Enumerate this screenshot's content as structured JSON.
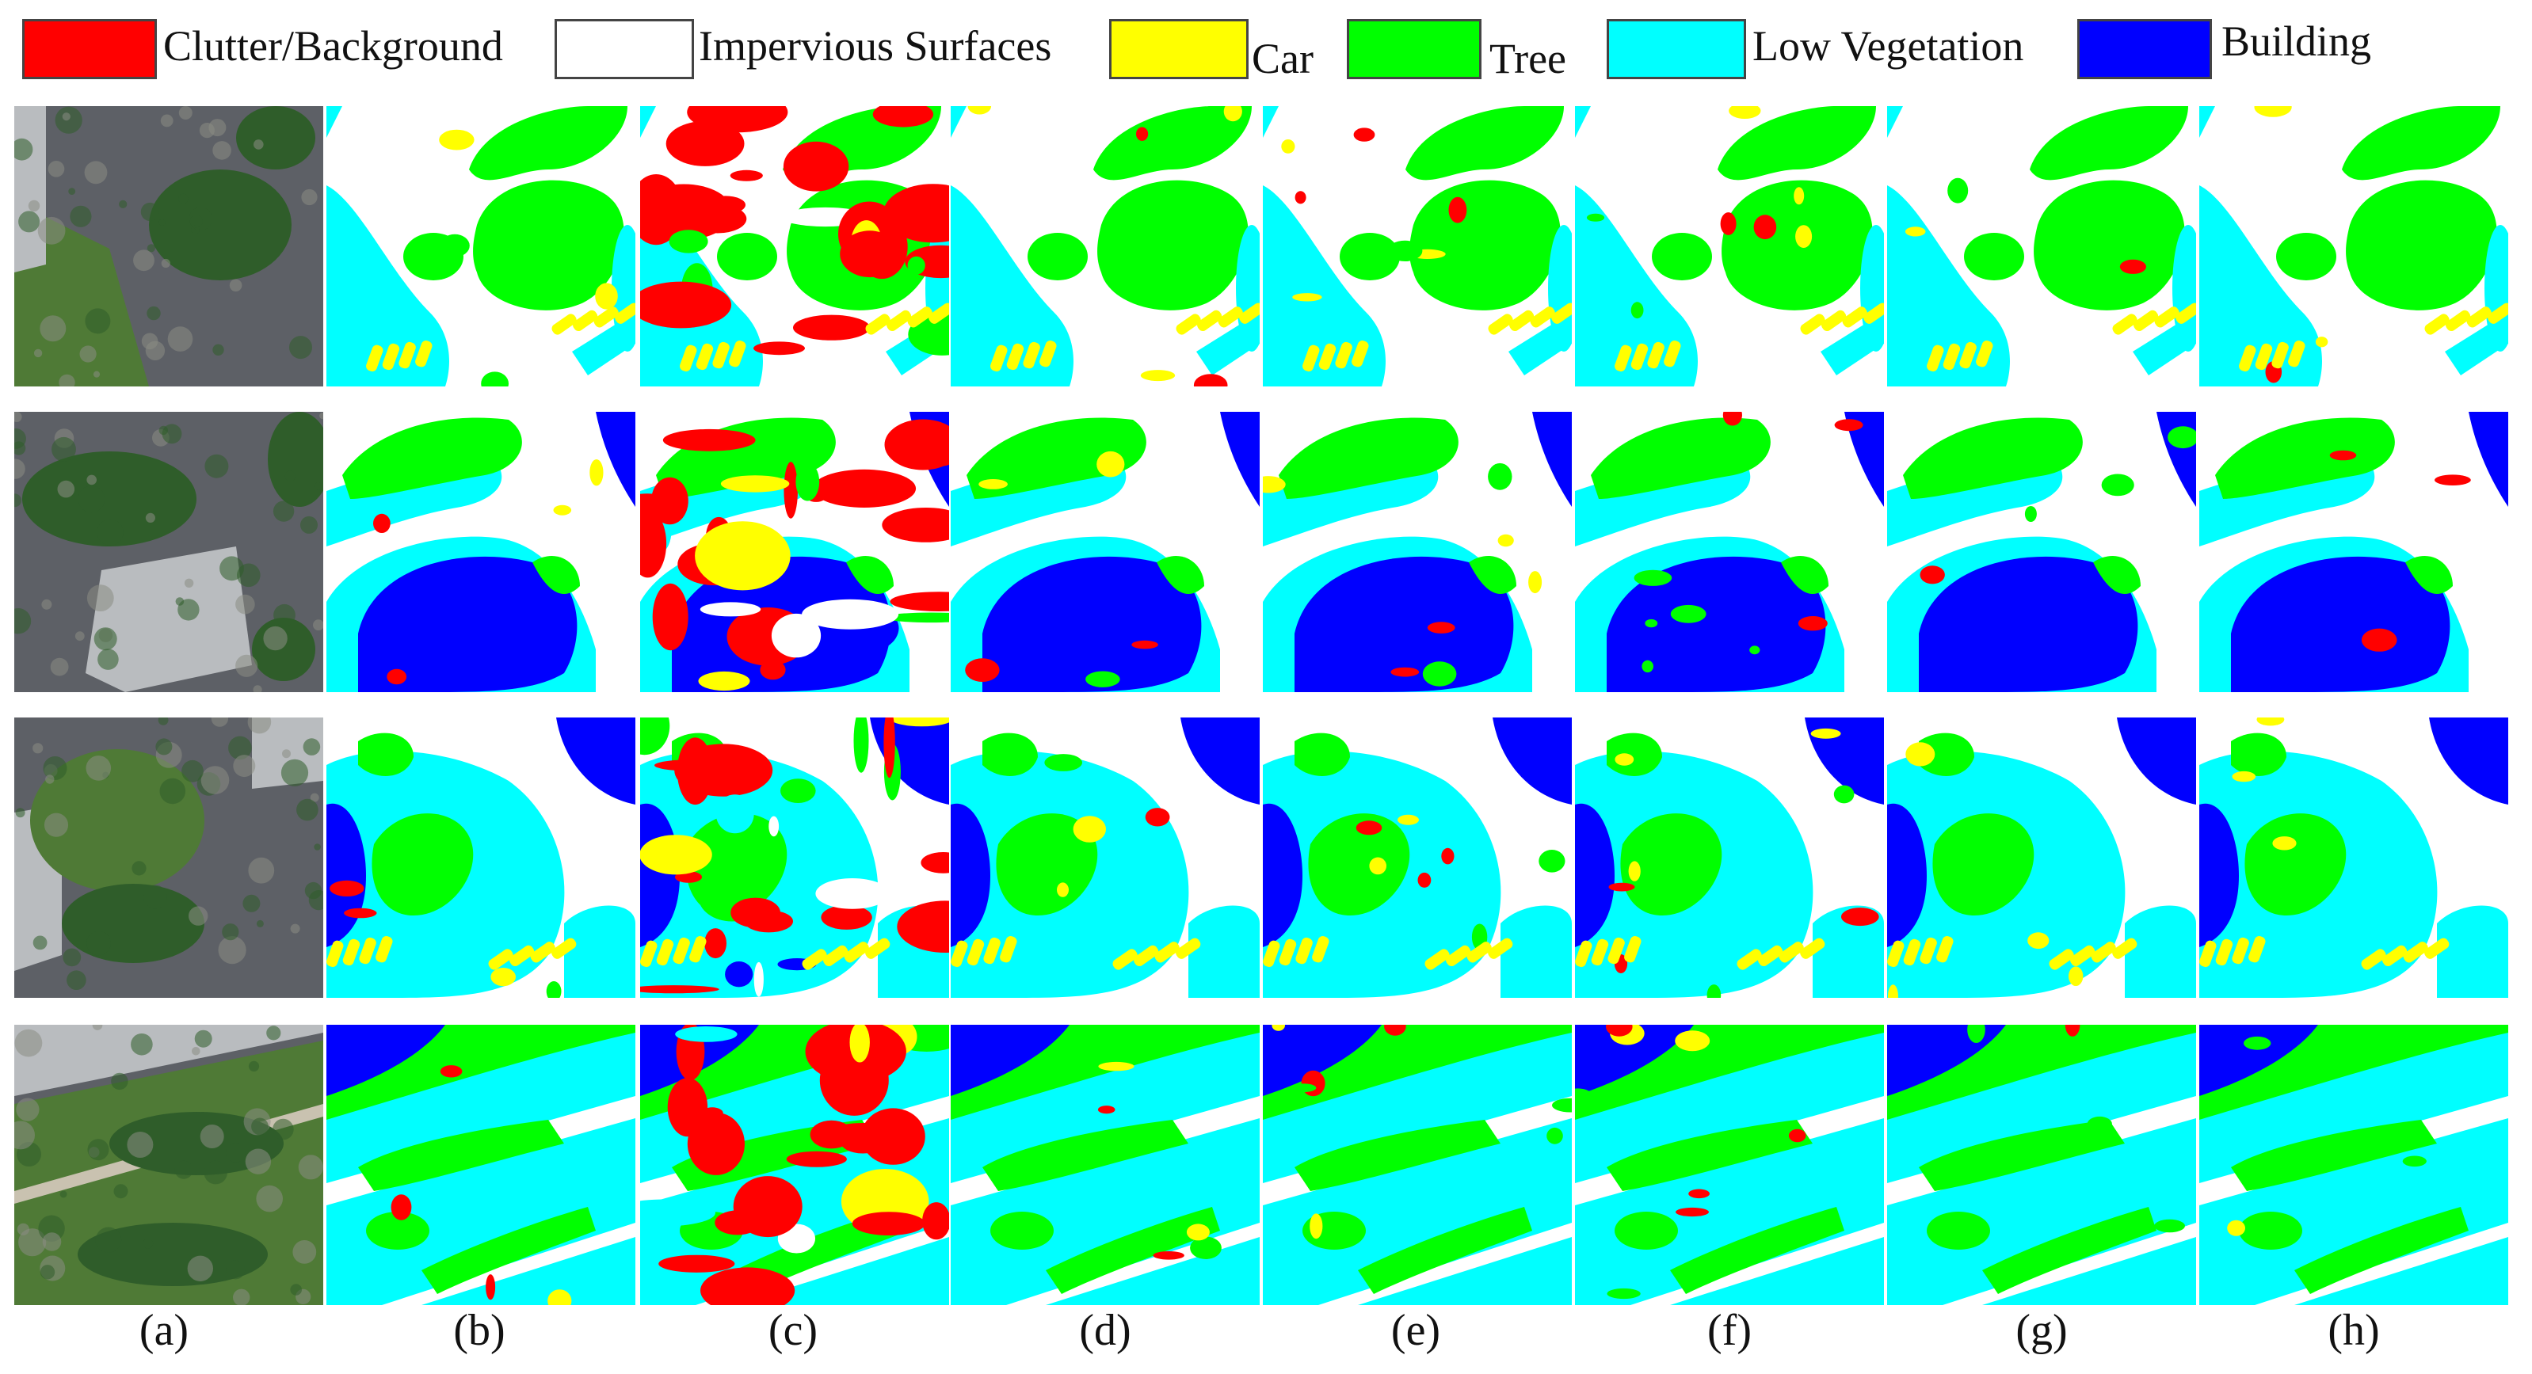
{
  "legend": {
    "items": [
      {
        "label": "Clutter/Background",
        "color": "#ff0000"
      },
      {
        "label": "Impervious Surfaces",
        "color": "#ffffff"
      },
      {
        "label": "Car",
        "color": "#ffff00"
      },
      {
        "label": "Tree",
        "color": "#00ff00"
      },
      {
        "label": "Low Vegetation",
        "color": "#00ffff"
      },
      {
        "label": "Building",
        "color": "#0000ff"
      }
    ]
  },
  "columns": [
    "(a)",
    "(b)",
    "(c)",
    "(d)",
    "(e)",
    "(f)",
    "(g)",
    "(h)"
  ],
  "rows": 4,
  "colors": {
    "clutter": "#ff0000",
    "impervious": "#ffffff",
    "car": "#ffff00",
    "tree": "#00ff00",
    "low_vegetation": "#00ffff",
    "building": "#0000ff",
    "photo_road": "#5d6066",
    "photo_grass": "#4f7a36",
    "photo_tree": "#2f5d2a",
    "photo_roof": "#b9bcbf"
  }
}
